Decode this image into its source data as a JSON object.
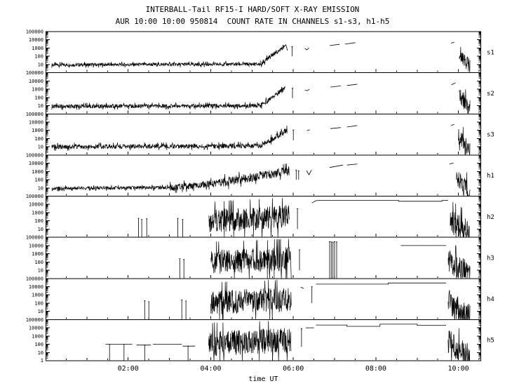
{
  "chart_data": {
    "type": "line",
    "title": "INTERBALL-Tail RF15-I HARD/SOFT X-RAY EMISSION",
    "subtitle": "AUR 10:00 10:00 950814  COUNT RATE IN CHANNELS s1-s3, h1-h5",
    "xlabel": "time UT",
    "x_range": [
      0,
      10.55
    ],
    "x_ticks": [
      {
        "value": 2,
        "label": "02:00"
      },
      {
        "value": 4,
        "label": "04:00"
      },
      {
        "value": 6,
        "label": "06:00"
      },
      {
        "value": 8,
        "label": "08:00"
      },
      {
        "value": 10,
        "label": "10:00"
      }
    ],
    "y_scale": "log",
    "y_range": [
      1,
      100000
    ],
    "y_tick_labels": [
      {
        "value": 100000,
        "label": "100000"
      },
      {
        "value": 10000,
        "label": "10000"
      },
      {
        "value": 1000,
        "label": "1000"
      },
      {
        "value": 100,
        "label": "100"
      },
      {
        "value": 10,
        "label": "10"
      }
    ],
    "y_base_label": {
      "value": 1,
      "label": "1"
    },
    "panels": [
      {
        "name": "s1",
        "segments": [
          {
            "type": "noise",
            "t0": 0.15,
            "t1": 5.2,
            "v0": 9,
            "v1": 11,
            "spread": 0.22
          },
          {
            "type": "noise",
            "t0": 5.2,
            "t1": 5.78,
            "v0": 11,
            "v1": 1500,
            "spread": 0.3
          },
          {
            "type": "line",
            "points": [
              [
                5.78,
                1500
              ],
              [
                5.82,
                2500
              ],
              [
                5.86,
                500
              ]
            ]
          },
          {
            "type": "spike",
            "t": 5.97,
            "v_top": 1500,
            "v_bottom": 100
          },
          {
            "type": "line",
            "points": [
              [
                6.28,
                900
              ],
              [
                6.33,
                600
              ],
              [
                6.38,
                1100
              ]
            ]
          },
          {
            "type": "line",
            "points": [
              [
                6.88,
                2000
              ],
              [
                7.12,
                2800
              ]
            ]
          },
          {
            "type": "line",
            "points": [
              [
                7.25,
                3000
              ],
              [
                7.5,
                4500
              ]
            ]
          },
          {
            "type": "line",
            "points": [
              [
                9.82,
                4000
              ],
              [
                9.9,
                5200
              ]
            ]
          },
          {
            "type": "noise",
            "t0": 10.02,
            "t1": 10.28,
            "v0": 300,
            "v1": 4,
            "spread": 1.0
          }
        ]
      },
      {
        "name": "s2",
        "segments": [
          {
            "type": "noise",
            "t0": 0.15,
            "t1": 5.2,
            "v0": 8,
            "v1": 10,
            "spread": 0.26
          },
          {
            "type": "noise",
            "t0": 5.2,
            "t1": 5.8,
            "v0": 10,
            "v1": 1200,
            "spread": 0.32
          },
          {
            "type": "spike",
            "t": 5.98,
            "v_top": 1300,
            "v_bottom": 80
          },
          {
            "type": "line",
            "points": [
              [
                6.28,
                800
              ],
              [
                6.34,
                650
              ],
              [
                6.39,
                1000
              ]
            ]
          },
          {
            "type": "line",
            "points": [
              [
                6.9,
                1800
              ],
              [
                7.15,
                2500
              ]
            ]
          },
          {
            "type": "line",
            "points": [
              [
                7.3,
                2800
              ],
              [
                7.55,
                4000
              ]
            ]
          },
          {
            "type": "line",
            "points": [
              [
                9.83,
                3500
              ],
              [
                9.93,
                6000
              ]
            ]
          },
          {
            "type": "noise",
            "t0": 10.02,
            "t1": 10.28,
            "v0": 200,
            "v1": 4,
            "spread": 1.1
          }
        ]
      },
      {
        "name": "s3",
        "segments": [
          {
            "type": "noise",
            "t0": 0.15,
            "t1": 5.2,
            "v0": 10,
            "v1": 13,
            "spread": 0.3
          },
          {
            "type": "noise",
            "t0": 5.2,
            "t1": 5.85,
            "v0": 13,
            "v1": 1000,
            "spread": 0.38
          },
          {
            "type": "spike",
            "t": 6.0,
            "v_top": 1100,
            "v_bottom": 60
          },
          {
            "type": "line",
            "points": [
              [
                6.33,
                900
              ],
              [
                6.4,
                1200
              ]
            ]
          },
          {
            "type": "line",
            "points": [
              [
                6.9,
                1600
              ],
              [
                7.15,
                2200
              ]
            ]
          },
          {
            "type": "line",
            "points": [
              [
                7.3,
                2500
              ],
              [
                7.55,
                3800
              ]
            ]
          },
          {
            "type": "line",
            "points": [
              [
                9.82,
                3800
              ],
              [
                9.9,
                5200
              ]
            ]
          },
          {
            "type": "noise",
            "t0": 10.0,
            "t1": 10.28,
            "v0": 250,
            "v1": 4,
            "spread": 1.1
          }
        ]
      },
      {
        "name": "h1",
        "segments": [
          {
            "type": "noise",
            "t0": 0.15,
            "t1": 3.0,
            "v0": 9,
            "v1": 11,
            "spread": 0.22
          },
          {
            "type": "noise",
            "t0": 3.0,
            "t1": 4.2,
            "v0": 11,
            "v1": 40,
            "spread": 0.45
          },
          {
            "type": "noise",
            "t0": 4.2,
            "t1": 5.9,
            "v0": 40,
            "v1": 1200,
            "spread": 0.6
          },
          {
            "type": "spike",
            "t": 6.07,
            "v_top": 1500,
            "v_bottom": 100
          },
          {
            "type": "spike",
            "t": 6.13,
            "v_top": 1200,
            "v_bottom": 100
          },
          {
            "type": "line",
            "points": [
              [
                6.32,
                1300
              ],
              [
                6.38,
                400
              ],
              [
                6.44,
                1500
              ]
            ]
          },
          {
            "type": "line",
            "points": [
              [
                6.88,
                3000
              ],
              [
                7.2,
                6000
              ]
            ]
          },
          {
            "type": "line",
            "points": [
              [
                7.3,
                6000
              ],
              [
                7.55,
                8000
              ]
            ]
          },
          {
            "type": "line",
            "points": [
              [
                9.78,
                8000
              ],
              [
                9.88,
                11000
              ]
            ]
          },
          {
            "type": "noise",
            "t0": 9.95,
            "t1": 10.28,
            "v0": 150,
            "v1": 2,
            "spread": 1.4
          }
        ]
      },
      {
        "name": "h2",
        "segments": [
          {
            "type": "spike",
            "t": 2.25,
            "v_top": 200,
            "v_bottom": 1
          },
          {
            "type": "spike",
            "t": 2.33,
            "v_top": 150,
            "v_bottom": 1
          },
          {
            "type": "spike",
            "t": 2.45,
            "v_top": 180,
            "v_bottom": 1
          },
          {
            "type": "spike",
            "t": 3.2,
            "v_top": 200,
            "v_bottom": 1
          },
          {
            "type": "spike",
            "t": 3.32,
            "v_top": 150,
            "v_bottom": 1
          },
          {
            "type": "noise",
            "t0": 3.95,
            "t1": 5.9,
            "v0": 100,
            "v1": 300,
            "spread": 1.5
          },
          {
            "type": "spike",
            "t": 6.1,
            "v_top": 3000,
            "v_bottom": 10
          },
          {
            "type": "line",
            "points": [
              [
                6.45,
                15000
              ],
              [
                6.55,
                28000
              ],
              [
                6.6,
                30000
              ],
              [
                8.55,
                30000
              ],
              [
                8.55,
                24000
              ],
              [
                9.6,
                24000
              ],
              [
                9.6,
                30000
              ],
              [
                9.75,
                30000
              ]
            ]
          },
          {
            "type": "noise",
            "t0": 9.8,
            "t1": 10.28,
            "v0": 100,
            "v1": 3,
            "spread": 1.6
          }
        ]
      },
      {
        "name": "h3",
        "segments": [
          {
            "type": "spike",
            "t": 3.25,
            "v_top": 250,
            "v_bottom": 1
          },
          {
            "type": "spike",
            "t": 3.35,
            "v_top": 200,
            "v_bottom": 1
          },
          {
            "type": "noise",
            "t0": 4.0,
            "t1": 5.95,
            "v0": 100,
            "v1": 250,
            "spread": 1.55
          },
          {
            "type": "spike",
            "t": 6.15,
            "v_top": 3000,
            "v_bottom": 10
          },
          {
            "type": "spike",
            "t": 6.88,
            "v_top": 30000,
            "v_bottom": 1
          },
          {
            "type": "spike",
            "t": 6.92,
            "v_top": 28000,
            "v_bottom": 1
          },
          {
            "type": "spike",
            "t": 6.96,
            "v_top": 25000,
            "v_bottom": 1
          },
          {
            "type": "spike",
            "t": 7.0,
            "v_top": 30000,
            "v_bottom": 1
          },
          {
            "type": "spike",
            "t": 7.05,
            "v_top": 27000,
            "v_bottom": 1
          },
          {
            "type": "line",
            "points": [
              [
                8.6,
                10000
              ],
              [
                9.7,
                10000
              ]
            ]
          },
          {
            "type": "noise",
            "t0": 9.75,
            "t1": 10.28,
            "v0": 120,
            "v1": 3,
            "spread": 1.6
          }
        ]
      },
      {
        "name": "h4",
        "segments": [
          {
            "type": "spike",
            "t": 2.4,
            "v_top": 200,
            "v_bottom": 1
          },
          {
            "type": "spike",
            "t": 2.5,
            "v_top": 150,
            "v_bottom": 1
          },
          {
            "type": "spike",
            "t": 3.3,
            "v_top": 250,
            "v_bottom": 1
          },
          {
            "type": "spike",
            "t": 3.4,
            "v_top": 180,
            "v_bottom": 1
          },
          {
            "type": "noise",
            "t0": 4.0,
            "t1": 5.95,
            "v0": 120,
            "v1": 300,
            "spread": 1.55
          },
          {
            "type": "line",
            "points": [
              [
                6.18,
                9000
              ],
              [
                6.25,
                6000
              ]
            ]
          },
          {
            "type": "spike",
            "t": 6.45,
            "v_top": 10000,
            "v_bottom": 100
          },
          {
            "type": "line",
            "points": [
              [
                6.55,
                20000
              ],
              [
                8.3,
                20000
              ],
              [
                8.3,
                28000
              ],
              [
                9.7,
                28000
              ]
            ]
          },
          {
            "type": "noise",
            "t0": 9.75,
            "t1": 10.28,
            "v0": 150,
            "v1": 3,
            "spread": 1.6
          }
        ]
      },
      {
        "name": "h5",
        "segments": [
          {
            "type": "line",
            "points": [
              [
                1.45,
                100
              ],
              [
                2.1,
                100
              ]
            ]
          },
          {
            "type": "spike",
            "t": 1.55,
            "v_top": 100,
            "v_bottom": 1
          },
          {
            "type": "spike",
            "t": 1.9,
            "v_top": 100,
            "v_bottom": 1
          },
          {
            "type": "line",
            "points": [
              [
                2.2,
                80
              ],
              [
                2.55,
                80
              ]
            ]
          },
          {
            "type": "spike",
            "t": 2.4,
            "v_top": 80,
            "v_bottom": 1
          },
          {
            "type": "line",
            "points": [
              [
                2.6,
                100
              ],
              [
                3.3,
                100
              ]
            ]
          },
          {
            "type": "line",
            "points": [
              [
                3.32,
                60
              ],
              [
                3.62,
                60
              ]
            ]
          },
          {
            "type": "spike",
            "t": 3.45,
            "v_top": 60,
            "v_bottom": 1
          },
          {
            "type": "noise",
            "t0": 3.95,
            "t1": 5.95,
            "v0": 120,
            "v1": 300,
            "spread": 1.6
          },
          {
            "type": "spike",
            "t": 6.2,
            "v_top": 8000,
            "v_bottom": 50
          },
          {
            "type": "line",
            "points": [
              [
                6.3,
                10000
              ],
              [
                6.5,
                10000
              ]
            ]
          },
          {
            "type": "line",
            "points": [
              [
                6.55,
                22000
              ],
              [
                7.3,
                22000
              ],
              [
                7.3,
                15000
              ],
              [
                8.1,
                15000
              ],
              [
                8.1,
                28000
              ],
              [
                9.0,
                28000
              ],
              [
                9.0,
                20000
              ],
              [
                9.7,
                20000
              ]
            ]
          },
          {
            "type": "noise",
            "t0": 9.75,
            "t1": 10.28,
            "v0": 200,
            "v1": 3,
            "spread": 1.6
          }
        ]
      }
    ]
  }
}
